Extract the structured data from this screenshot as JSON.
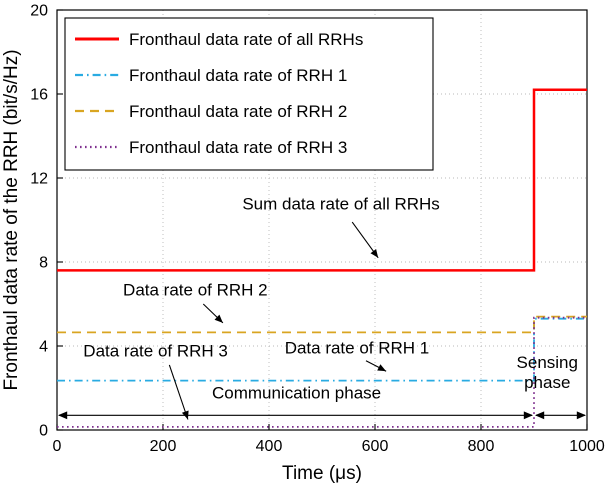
{
  "figure": {
    "background": "#ffffff"
  },
  "chart_data": {
    "type": "line",
    "title": "",
    "xlabel": "Time (μs)",
    "ylabel": "Fronthaul data rate of the RRH (bit/s/Hz)",
    "xlim": [
      0,
      1000
    ],
    "ylim": [
      0,
      20
    ],
    "x_tick_values": [
      0,
      200,
      400,
      600,
      800,
      1000
    ],
    "x_ticks": [
      "0",
      "200",
      "400",
      "600",
      "800",
      "1000"
    ],
    "y_tick_values": [
      0,
      4,
      8,
      12,
      16,
      20
    ],
    "y_ticks": [
      "0",
      "4",
      "8",
      "12",
      "16",
      "20"
    ],
    "grid": true,
    "legend_position": "top-left",
    "series": [
      {
        "name": "Fronthaul data rate of all RRHs",
        "color": "#ff0000",
        "style": "solid",
        "width": 2.5,
        "points": [
          [
            0,
            7.6
          ],
          [
            900,
            7.6
          ],
          [
            900,
            16.2
          ],
          [
            1000,
            16.2
          ]
        ]
      },
      {
        "name": "Fronthaul data rate of RRH 1",
        "color": "#29abe2",
        "style": "dashdot",
        "width": 1.8,
        "points": [
          [
            0,
            2.35
          ],
          [
            900,
            2.35
          ],
          [
            900,
            5.3
          ],
          [
            1000,
            5.3
          ]
        ]
      },
      {
        "name": "Fronthaul data rate of RRH 2",
        "color": "#d9a521",
        "style": "dashed",
        "width": 1.8,
        "points": [
          [
            0,
            4.65
          ],
          [
            900,
            4.65
          ],
          [
            900,
            5.4
          ],
          [
            1000,
            5.4
          ]
        ]
      },
      {
        "name": "Fronthaul data rate of RRH 3",
        "color": "#7e2f8e",
        "style": "dotted",
        "width": 1.8,
        "points": [
          [
            0,
            0.15
          ],
          [
            900,
            0.15
          ],
          [
            900,
            5.35
          ],
          [
            1000,
            5.35
          ]
        ]
      }
    ],
    "annotations": [
      {
        "text": "Sum data rate of all RRHs",
        "tx": 536,
        "ty": 10.5,
        "sx": 557,
        "sy": 9.9,
        "ax": 606,
        "ay": 8.2
      },
      {
        "text": "Data rate of RRH 2",
        "tx": 261,
        "ty": 6.4,
        "sx": 276,
        "sy": 6.0,
        "ax": 313,
        "ay": 5.1
      },
      {
        "text": "Data rate of RRH 3",
        "tx": 186,
        "ty": 3.5,
        "sx": 212,
        "sy": 3.1,
        "ax": 247,
        "ay": 0.5
      },
      {
        "text": "Data rate of RRH 1",
        "tx": 566,
        "ty": 3.65,
        "sx": 583,
        "sy": 3.3,
        "ax": 621,
        "ay": 2.8
      }
    ],
    "phase_spans": [
      {
        "text": "Communication phase",
        "wrap": false,
        "x0": 0,
        "x1": 900,
        "y": 0.7,
        "label_x": 452,
        "label_y": 1.5
      },
      {
        "text": "Sensing phase",
        "wrap": true,
        "x0": 900,
        "x1": 1000,
        "y": 0.7,
        "label_x": 925,
        "label_y": 2.95
      }
    ]
  }
}
